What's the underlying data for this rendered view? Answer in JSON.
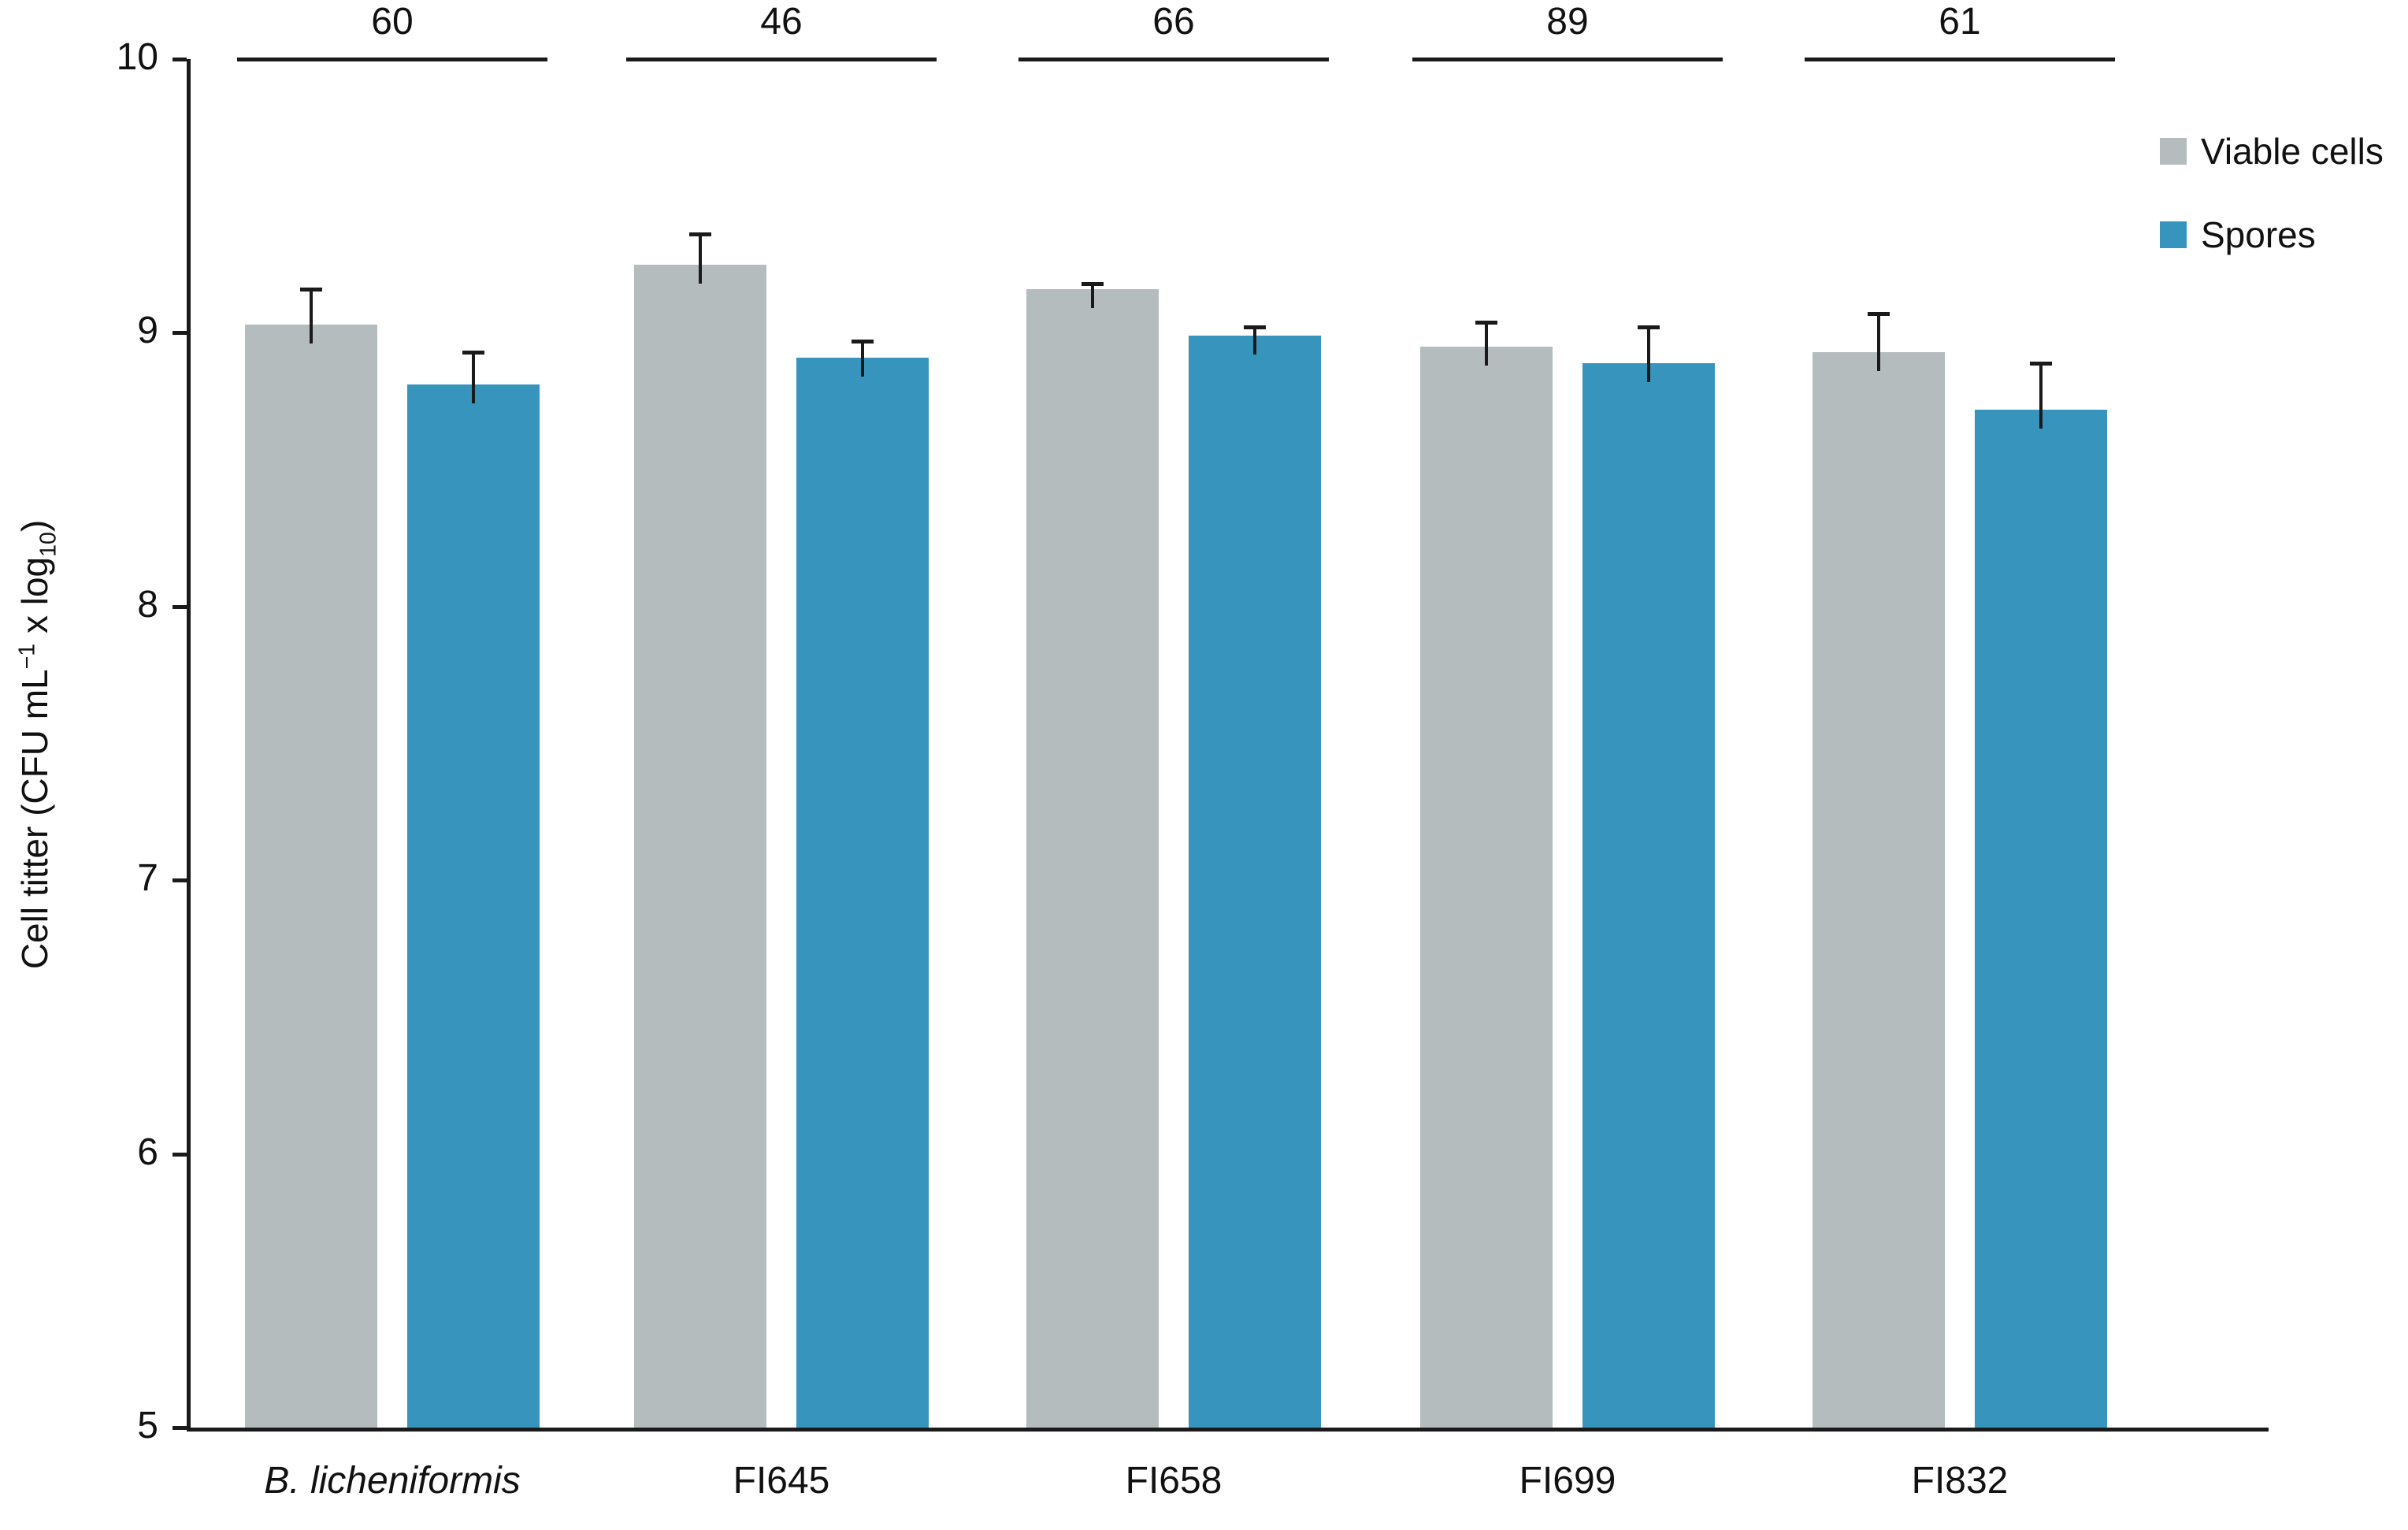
{
  "chart_data": {
    "type": "bar",
    "title": "",
    "categories": [
      "B. licheniformis",
      "FI645",
      "FI658",
      "FI699",
      "FI832"
    ],
    "categories_italic": [
      true,
      false,
      false,
      false,
      false
    ],
    "series": [
      {
        "name": "Viable cells",
        "color": "#b4bcbe",
        "values": [
          9.03,
          9.25,
          9.16,
          8.95,
          8.93
        ],
        "errors_plus": [
          0.13,
          0.11,
          0.02,
          0.09,
          0.14
        ]
      },
      {
        "name": "Spores",
        "color": "#3794bc",
        "values": [
          8.81,
          8.91,
          8.99,
          8.89,
          8.72
        ],
        "errors_plus": [
          0.12,
          0.06,
          0.03,
          0.13,
          0.17
        ]
      }
    ],
    "group_annotations": [
      "60",
      "46",
      "66",
      "89",
      "61"
    ],
    "ylabel_parts": {
      "main": "Cell titter (CFU mL",
      "sup": "−1",
      "mid": " x log",
      "sub": "10",
      "end": ")"
    },
    "y_axis": {
      "min": 5,
      "max": 10,
      "ticks": [
        5,
        6,
        7,
        8,
        9,
        10
      ]
    },
    "grid": false,
    "legend_position": "top-right",
    "error_bars": "upper-only",
    "colors": {
      "viable_cells": "#b4bcbe",
      "spores": "#3794bc",
      "axis": "#1a1a1a"
    }
  },
  "legend": {
    "items": [
      {
        "label": "Viable cells",
        "color": "#b4bcbe"
      },
      {
        "label": "Spores",
        "color": "#3794bc"
      }
    ]
  }
}
